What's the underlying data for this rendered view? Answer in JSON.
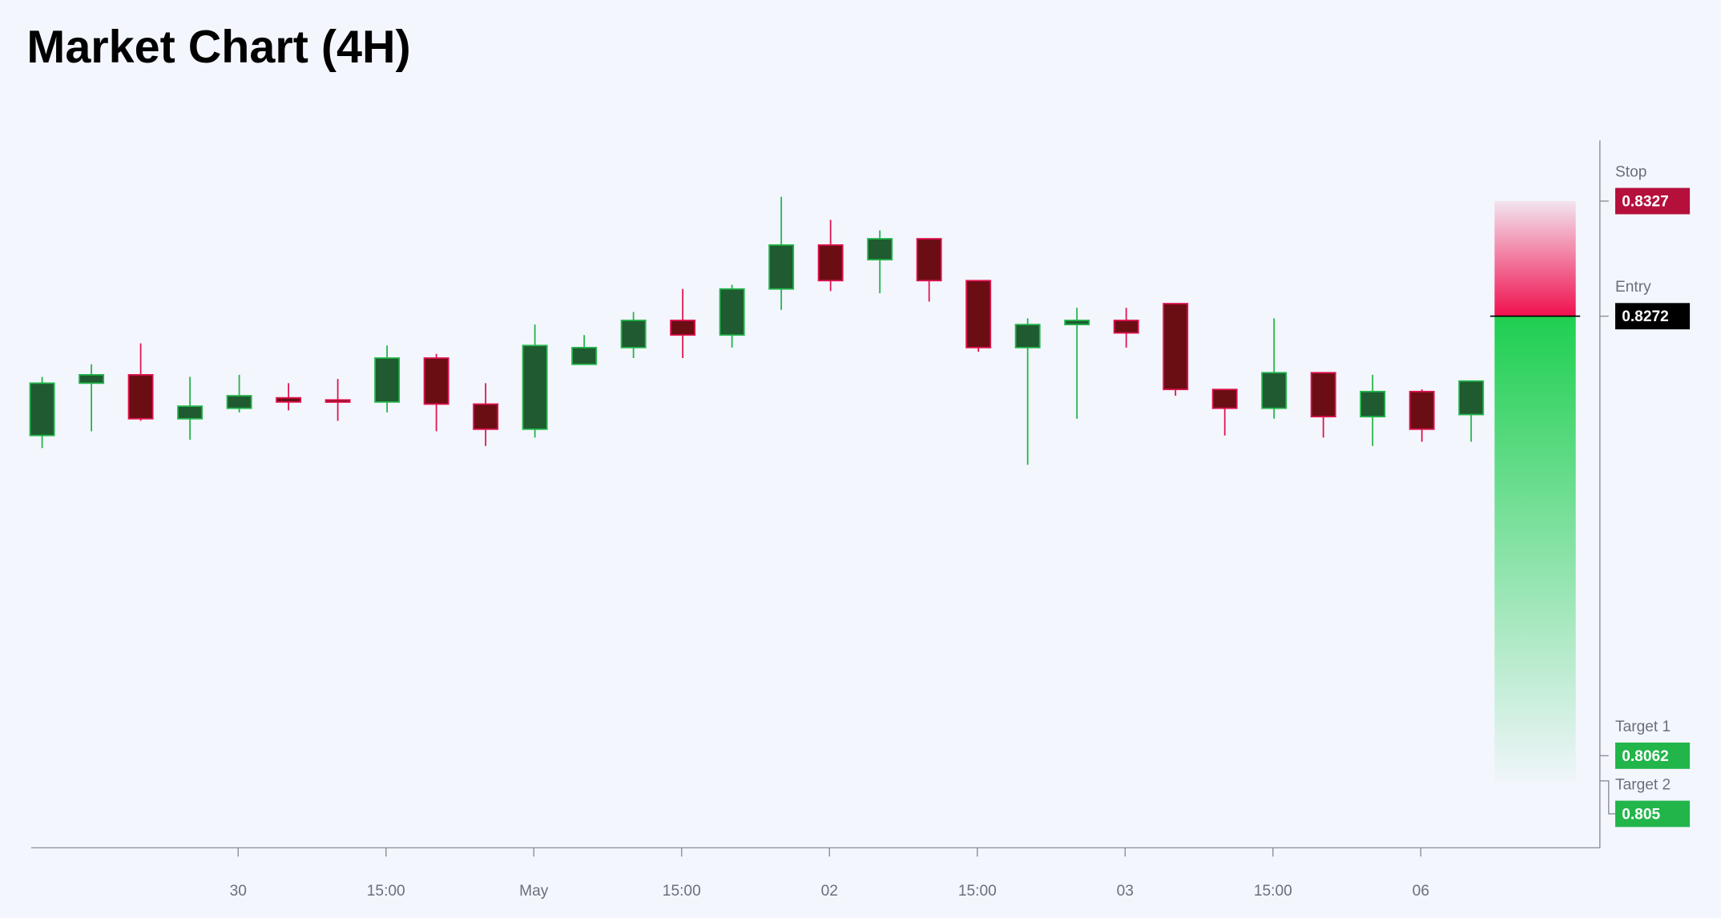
{
  "chart_data": {
    "type": "candlestick",
    "title": "Market Chart (4H)",
    "categories": [
      null,
      null,
      null,
      null,
      "30",
      null,
      null,
      "15:00",
      null,
      null,
      "May",
      null,
      null,
      "15:00",
      null,
      null,
      "02",
      null,
      null,
      "15:00",
      null,
      null,
      "03",
      null,
      null,
      "15:00",
      null,
      null,
      "06",
      null
    ],
    "open": [
      0.8215,
      0.824,
      0.8244,
      0.8223,
      0.8228,
      0.8233,
      0.8232,
      0.8231,
      0.8252,
      0.823,
      0.8218,
      0.8249,
      0.8257,
      0.827,
      0.8263,
      0.8285,
      0.8306,
      0.8299,
      0.8309,
      0.8289,
      0.8257,
      0.8268,
      0.827,
      0.8278,
      0.8237,
      0.8228,
      0.8245,
      0.8224,
      0.8236,
      0.8225
    ],
    "high": [
      0.8243,
      0.8249,
      0.8259,
      0.8243,
      0.8244,
      0.824,
      0.8242,
      0.8258,
      0.8254,
      0.824,
      0.8268,
      0.8263,
      0.8274,
      0.8285,
      0.8287,
      0.8329,
      0.8318,
      0.8313,
      0.8309,
      0.8289,
      0.8271,
      0.8276,
      0.8276,
      0.8278,
      0.8237,
      0.8271,
      0.8245,
      0.8244,
      0.8237,
      0.8241
    ],
    "low": [
      0.8209,
      0.8217,
      0.8222,
      0.8213,
      0.8226,
      0.8227,
      0.8222,
      0.8226,
      0.8217,
      0.821,
      0.8214,
      0.8249,
      0.8252,
      0.8252,
      0.8257,
      0.8275,
      0.8284,
      0.8283,
      0.8279,
      0.8255,
      0.8201,
      0.8223,
      0.8257,
      0.8234,
      0.8215,
      0.8223,
      0.8214,
      0.821,
      0.8212,
      0.8212
    ],
    "close": [
      0.824,
      0.8244,
      0.8223,
      0.8229,
      0.8234,
      0.8231,
      0.8231,
      0.8252,
      0.823,
      0.8218,
      0.8258,
      0.8257,
      0.827,
      0.8263,
      0.8285,
      0.8306,
      0.8289,
      0.8309,
      0.8289,
      0.8257,
      0.8268,
      0.827,
      0.8264,
      0.8237,
      0.8228,
      0.8245,
      0.8224,
      0.8236,
      0.8218,
      0.8241
    ],
    "up_color": "#22b54a",
    "down_color": "#e0134f",
    "ylim": [
      0.8018,
      0.8356
    ],
    "levels": [
      {
        "name": "Stop",
        "value": 0.8327,
        "color": "#b5103c"
      },
      {
        "name": "Entry",
        "value": 0.8272,
        "color": "#000000"
      },
      {
        "name": "Target 1",
        "value": 0.8062,
        "color": "#22b54a"
      },
      {
        "name": "Target 2",
        "value": 0.805,
        "color": "#22b54a"
      }
    ]
  }
}
